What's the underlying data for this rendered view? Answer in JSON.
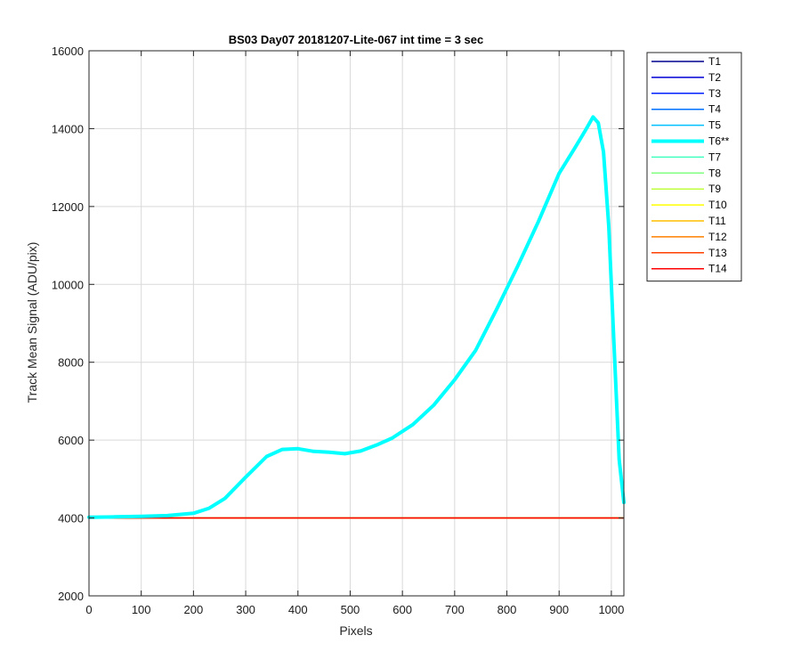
{
  "chart_data": {
    "type": "line",
    "title": "BS03 Day07 20181207-Lite-067 int time = 3 sec",
    "xlabel": "Pixels",
    "ylabel": "Track Mean Signal (ADU/pix)",
    "xlim": [
      0,
      1024
    ],
    "ylim": [
      2000,
      16000
    ],
    "xticks": [
      0,
      100,
      200,
      300,
      400,
      500,
      600,
      700,
      800,
      900,
      1000
    ],
    "yticks": [
      2000,
      4000,
      6000,
      8000,
      10000,
      12000,
      14000,
      16000
    ],
    "grid": true,
    "legend_position": "outside-top-right",
    "series": [
      {
        "name": "T1",
        "color": "#00008f",
        "values": "flat",
        "level": 4000
      },
      {
        "name": "T2",
        "color": "#0000d6",
        "values": "flat",
        "level": 4000
      },
      {
        "name": "T3",
        "color": "#0020ff",
        "values": "flat",
        "level": 4000
      },
      {
        "name": "T4",
        "color": "#0070ff",
        "values": "flat",
        "level": 4000
      },
      {
        "name": "T5",
        "color": "#00c0ff",
        "values": "flat",
        "level": 4000
      },
      {
        "name": "T6**",
        "color": "#00ffff",
        "highlight": true,
        "x": [
          0,
          50,
          100,
          150,
          200,
          230,
          260,
          300,
          340,
          370,
          400,
          430,
          460,
          490,
          520,
          550,
          580,
          620,
          660,
          700,
          740,
          780,
          820,
          860,
          900,
          930,
          950,
          965,
          975,
          985,
          995,
          1005,
          1015,
          1024
        ],
        "y": [
          4020,
          4030,
          4040,
          4060,
          4120,
          4250,
          4500,
          5050,
          5580,
          5760,
          5780,
          5710,
          5690,
          5650,
          5720,
          5870,
          6050,
          6400,
          6900,
          7550,
          8300,
          9350,
          10450,
          11600,
          12850,
          13500,
          13950,
          14300,
          14150,
          13400,
          11500,
          8500,
          5500,
          4400
        ]
      },
      {
        "name": "T7",
        "color": "#40ffbf",
        "values": "flat",
        "level": 4000
      },
      {
        "name": "T8",
        "color": "#80ff80",
        "values": "flat",
        "level": 4000
      },
      {
        "name": "T9",
        "color": "#bfff40",
        "values": "flat",
        "level": 4000
      },
      {
        "name": "T10",
        "color": "#ffff00",
        "values": "flat",
        "level": 4000
      },
      {
        "name": "T11",
        "color": "#ffbf00",
        "values": "flat",
        "level": 4000
      },
      {
        "name": "T12",
        "color": "#ff8000",
        "values": "flat",
        "level": 4000
      },
      {
        "name": "T13",
        "color": "#ff4000",
        "values": "flat",
        "level": 4000
      },
      {
        "name": "T14",
        "color": "#ff0000",
        "values": "flat",
        "level": 4000
      }
    ]
  }
}
